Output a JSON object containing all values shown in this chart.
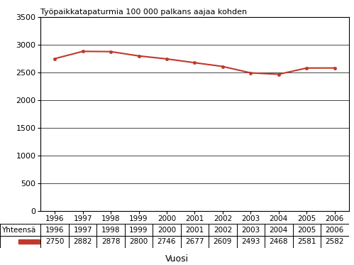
{
  "years": [
    1996,
    1997,
    1998,
    1999,
    2000,
    2001,
    2002,
    2003,
    2004,
    2005,
    2006
  ],
  "values": [
    2750,
    2882,
    2878,
    2800,
    2746,
    2677,
    2609,
    2493,
    2468,
    2581,
    2582
  ],
  "title": "Työpaikkatapaturmia 100 000 palkans aajaa kohden",
  "xlabel": "Vuosi",
  "ylim": [
    0,
    3500
  ],
  "yticks": [
    0,
    500,
    1000,
    1500,
    2000,
    2500,
    3000,
    3500
  ],
  "line_color": "#c0392b",
  "legend_label": "Yhteensä",
  "bg_color": "#ffffff"
}
